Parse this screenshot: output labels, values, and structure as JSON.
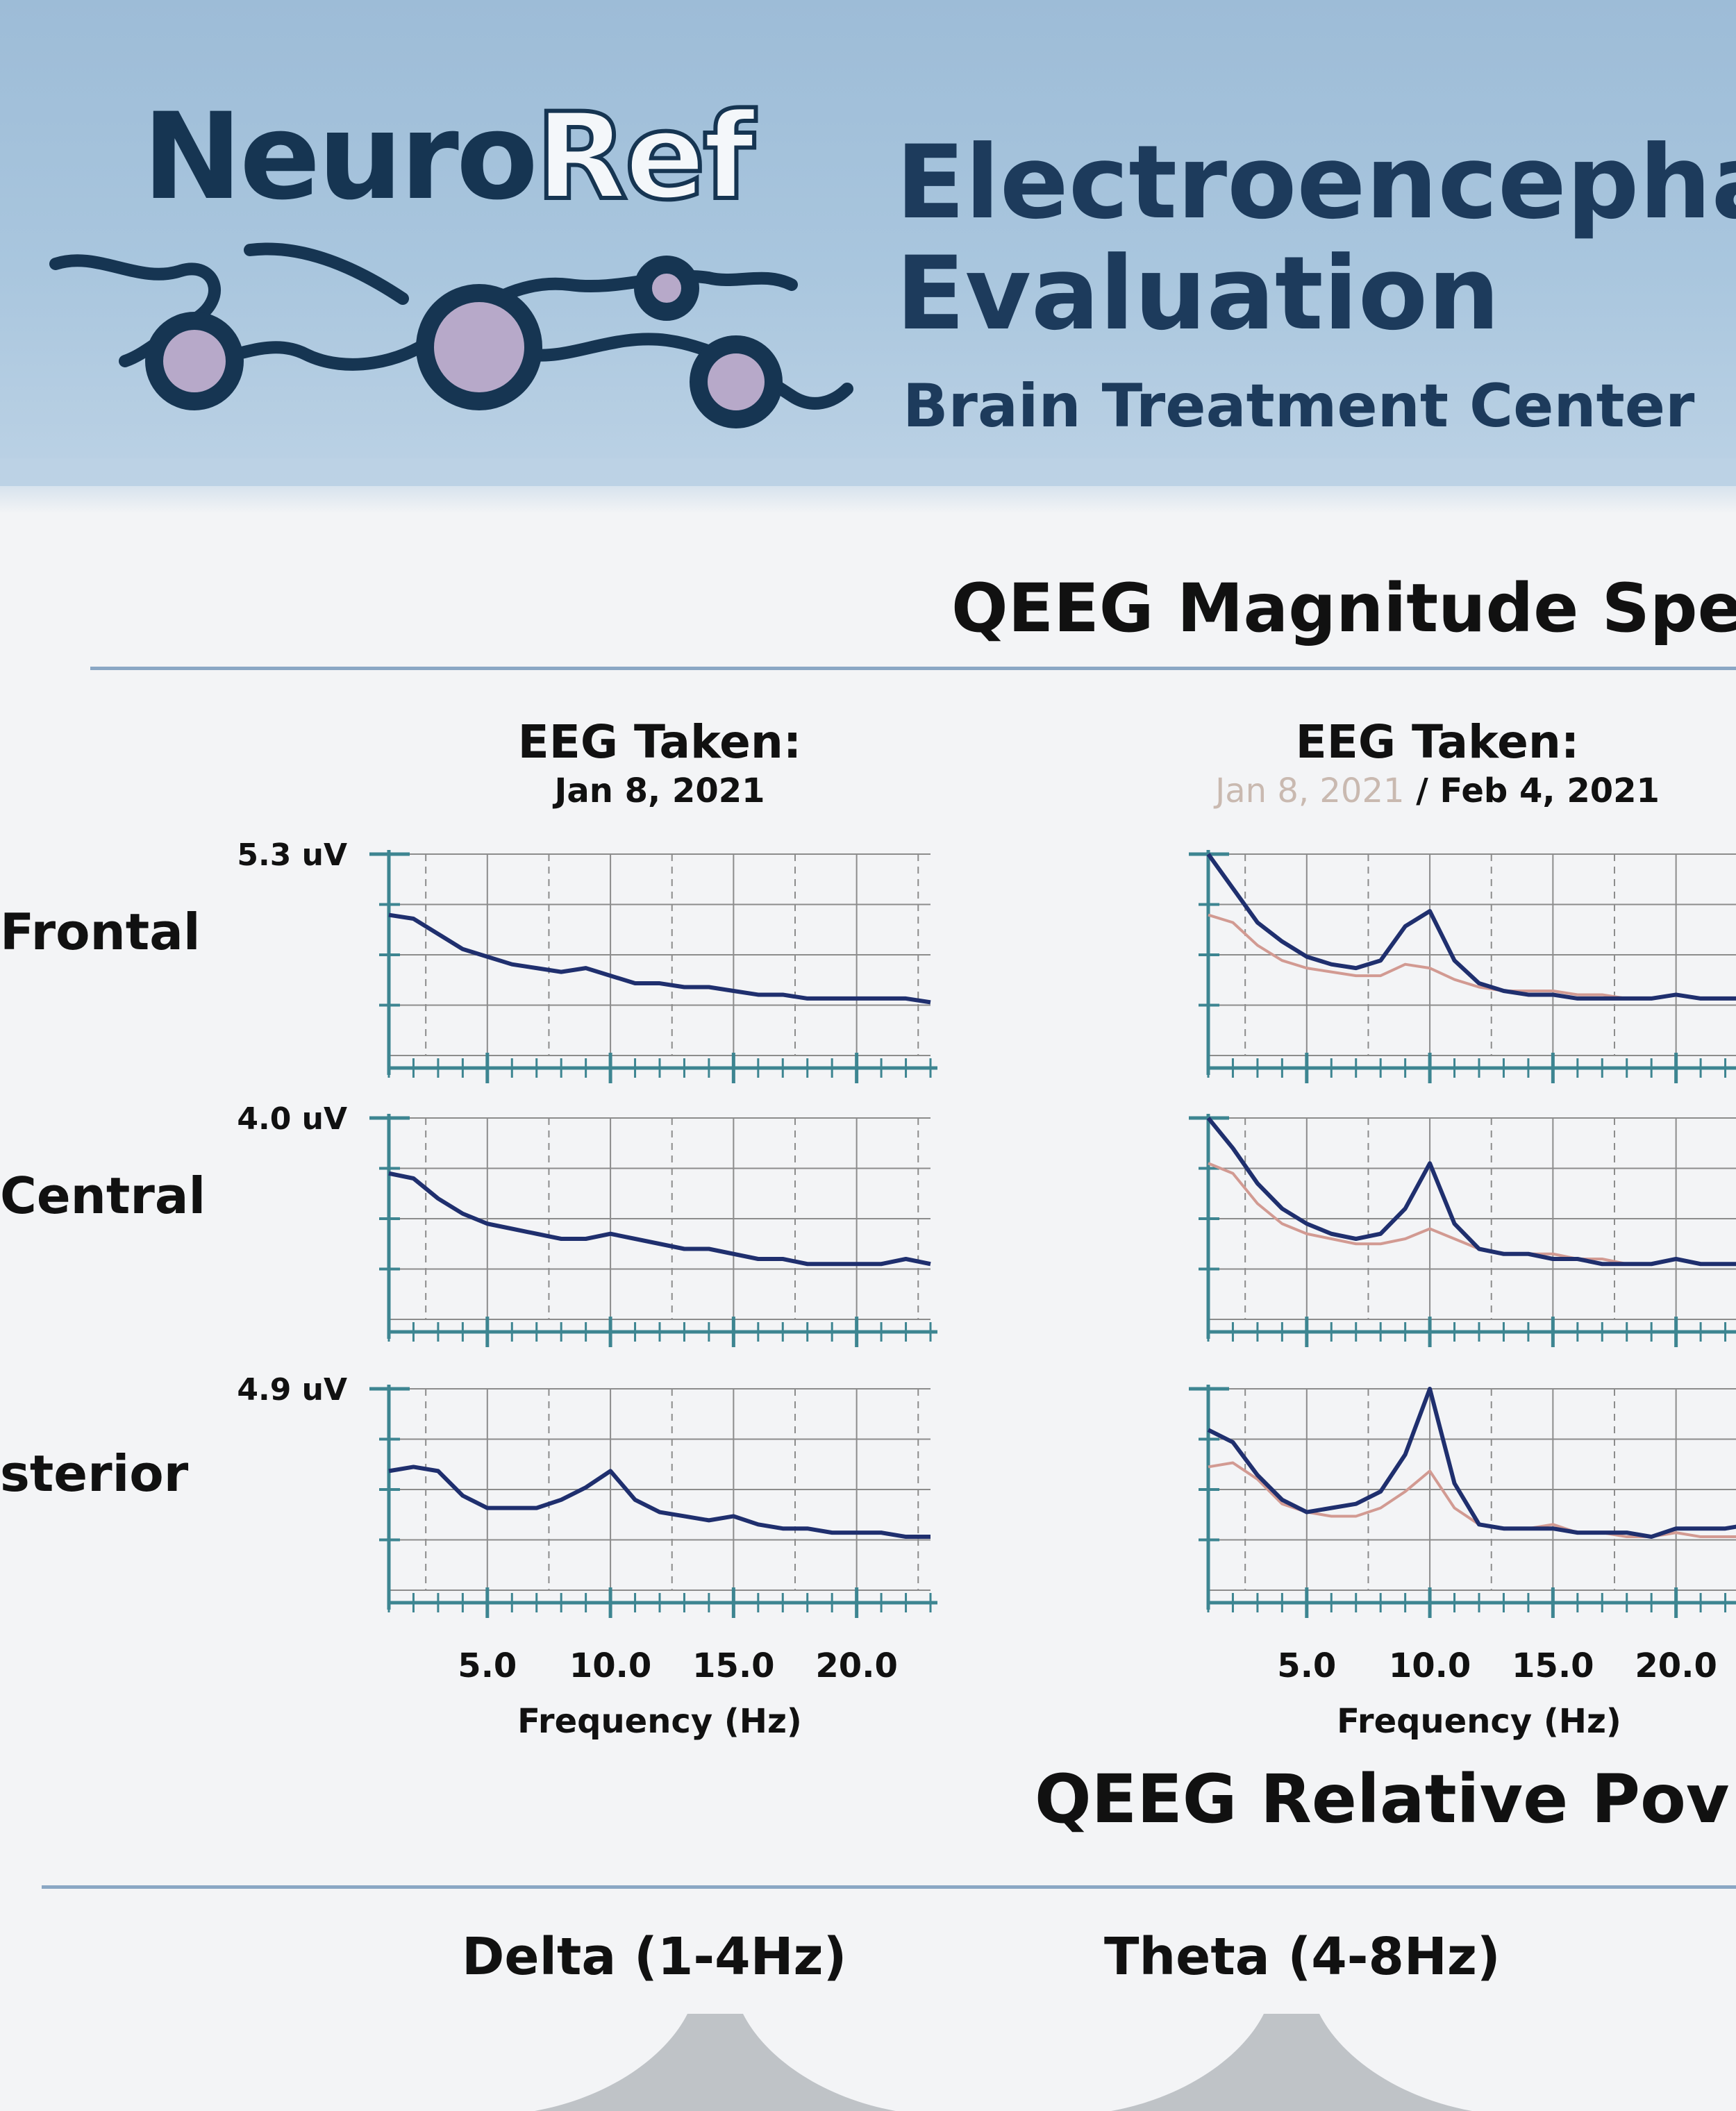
{
  "header": {
    "logo_neuro": "Neuro",
    "logo_ref": "Ref",
    "title_line1": "Electroencepha",
    "title_line2": "Evaluation",
    "subtitle": "Brain Treatment Center"
  },
  "magnitude_section": {
    "title": "QEEG Magnitude Spec"
  },
  "columns": [
    {
      "heading": "EEG Taken:",
      "date_prior": "",
      "date": "Jan 8, 2021"
    },
    {
      "heading": "EEG Taken:",
      "date_prior": "Jan 8, 2021",
      "date": " / Feb 4, 2021"
    }
  ],
  "rows": [
    {
      "label": "Frontal",
      "ymax_label": "5.3 uV"
    },
    {
      "label": "Central",
      "ymax_label": "4.0 uV"
    },
    {
      "label": "sterior",
      "ymax_label": "4.9 uV"
    }
  ],
  "xaxis": {
    "ticks": [
      "5.0",
      "10.0",
      "15.0",
      "20.0"
    ],
    "title": "Frequency (Hz)"
  },
  "relative_section": {
    "title": "QEEG Relative Pov",
    "bands": [
      "Delta (1-4Hz)",
      "Theta (4-8Hz)"
    ]
  },
  "colors": {
    "current": "#1f2f6e",
    "prior": "#d29a92",
    "grid": "#8c8c8c",
    "axis": "#3d8591"
  },
  "chart_data": [
    {
      "type": "line",
      "region": "Frontal",
      "column": 1,
      "x": [
        1,
        2,
        3,
        4,
        5,
        6,
        7,
        8,
        9,
        10,
        11,
        12,
        13,
        14,
        15,
        16,
        17,
        18,
        19,
        20,
        21,
        22,
        23
      ],
      "xlim": [
        1,
        23
      ],
      "ylim": [
        0,
        5.3
      ],
      "series": [
        {
          "values": [
            3.7,
            3.6,
            3.2,
            2.8,
            2.6,
            2.4,
            2.3,
            2.2,
            2.3,
            2.1,
            1.9,
            1.9,
            1.8,
            1.8,
            1.7,
            1.6,
            1.6,
            1.5,
            1.5,
            1.5,
            1.5,
            1.5,
            1.4
          ]
        }
      ]
    },
    {
      "type": "line",
      "region": "Frontal",
      "column": 2,
      "x": [
        1,
        2,
        3,
        4,
        5,
        6,
        7,
        8,
        9,
        10,
        11,
        12,
        13,
        14,
        15,
        16,
        17,
        18,
        19,
        20,
        21,
        22,
        23
      ],
      "xlim": [
        1,
        23
      ],
      "ylim": [
        0,
        5.3
      ],
      "series": [
        {
          "values": [
            5.3,
            4.4,
            3.5,
            3.0,
            2.6,
            2.4,
            2.3,
            2.5,
            3.4,
            3.8,
            2.5,
            1.9,
            1.7,
            1.6,
            1.6,
            1.5,
            1.5,
            1.5,
            1.5,
            1.6,
            1.5,
            1.5,
            1.5
          ]
        },
        {
          "values": [
            3.7,
            3.5,
            2.9,
            2.5,
            2.3,
            2.2,
            2.1,
            2.1,
            2.4,
            2.3,
            2.0,
            1.8,
            1.7,
            1.7,
            1.7,
            1.6,
            1.6,
            1.5,
            1.5,
            1.6,
            1.5,
            1.5,
            1.5
          ]
        }
      ]
    },
    {
      "type": "line",
      "region": "Central",
      "column": 1,
      "x": [
        1,
        2,
        3,
        4,
        5,
        6,
        7,
        8,
        9,
        10,
        11,
        12,
        13,
        14,
        15,
        16,
        17,
        18,
        19,
        20,
        21,
        22,
        23
      ],
      "xlim": [
        1,
        23
      ],
      "ylim": [
        0,
        4.0
      ],
      "series": [
        {
          "values": [
            2.9,
            2.8,
            2.4,
            2.1,
            1.9,
            1.8,
            1.7,
            1.6,
            1.6,
            1.7,
            1.6,
            1.5,
            1.4,
            1.4,
            1.3,
            1.2,
            1.2,
            1.1,
            1.1,
            1.1,
            1.1,
            1.2,
            1.1
          ]
        }
      ]
    },
    {
      "type": "line",
      "region": "Central",
      "column": 2,
      "x": [
        1,
        2,
        3,
        4,
        5,
        6,
        7,
        8,
        9,
        10,
        11,
        12,
        13,
        14,
        15,
        16,
        17,
        18,
        19,
        20,
        21,
        22,
        23
      ],
      "xlim": [
        1,
        23
      ],
      "ylim": [
        0,
        4.0
      ],
      "series": [
        {
          "values": [
            4.0,
            3.4,
            2.7,
            2.2,
            1.9,
            1.7,
            1.6,
            1.7,
            2.2,
            3.1,
            1.9,
            1.4,
            1.3,
            1.3,
            1.2,
            1.2,
            1.1,
            1.1,
            1.1,
            1.2,
            1.1,
            1.1,
            1.1
          ]
        },
        {
          "values": [
            3.1,
            2.9,
            2.3,
            1.9,
            1.7,
            1.6,
            1.5,
            1.5,
            1.6,
            1.8,
            1.6,
            1.4,
            1.3,
            1.3,
            1.3,
            1.2,
            1.2,
            1.1,
            1.1,
            1.2,
            1.1,
            1.1,
            1.1
          ]
        }
      ]
    },
    {
      "type": "line",
      "region": "sterior",
      "column": 1,
      "x": [
        1,
        2,
        3,
        4,
        5,
        6,
        7,
        8,
        9,
        10,
        11,
        12,
        13,
        14,
        15,
        16,
        17,
        18,
        19,
        20,
        21,
        22,
        23
      ],
      "xlim": [
        1,
        23
      ],
      "ylim": [
        0,
        4.9
      ],
      "series": [
        {
          "values": [
            2.9,
            3.0,
            2.9,
            2.3,
            2.0,
            2.0,
            2.0,
            2.2,
            2.5,
            2.9,
            2.2,
            1.9,
            1.8,
            1.7,
            1.8,
            1.6,
            1.5,
            1.5,
            1.4,
            1.4,
            1.4,
            1.3,
            1.3
          ]
        }
      ]
    },
    {
      "type": "line",
      "region": "sterior",
      "column": 2,
      "x": [
        1,
        2,
        3,
        4,
        5,
        6,
        7,
        8,
        9,
        10,
        11,
        12,
        13,
        14,
        15,
        16,
        17,
        18,
        19,
        20,
        21,
        22,
        23
      ],
      "xlim": [
        1,
        23
      ],
      "ylim": [
        0,
        4.9
      ],
      "series": [
        {
          "values": [
            3.9,
            3.6,
            2.8,
            2.2,
            1.9,
            2.0,
            2.1,
            2.4,
            3.3,
            4.9,
            2.6,
            1.6,
            1.5,
            1.5,
            1.5,
            1.4,
            1.4,
            1.4,
            1.3,
            1.5,
            1.5,
            1.5,
            1.6
          ]
        },
        {
          "values": [
            3.0,
            3.1,
            2.7,
            2.1,
            1.9,
            1.8,
            1.8,
            2.0,
            2.4,
            2.9,
            2.0,
            1.6,
            1.5,
            1.5,
            1.6,
            1.4,
            1.4,
            1.3,
            1.3,
            1.4,
            1.3,
            1.3,
            1.3
          ]
        }
      ]
    }
  ]
}
